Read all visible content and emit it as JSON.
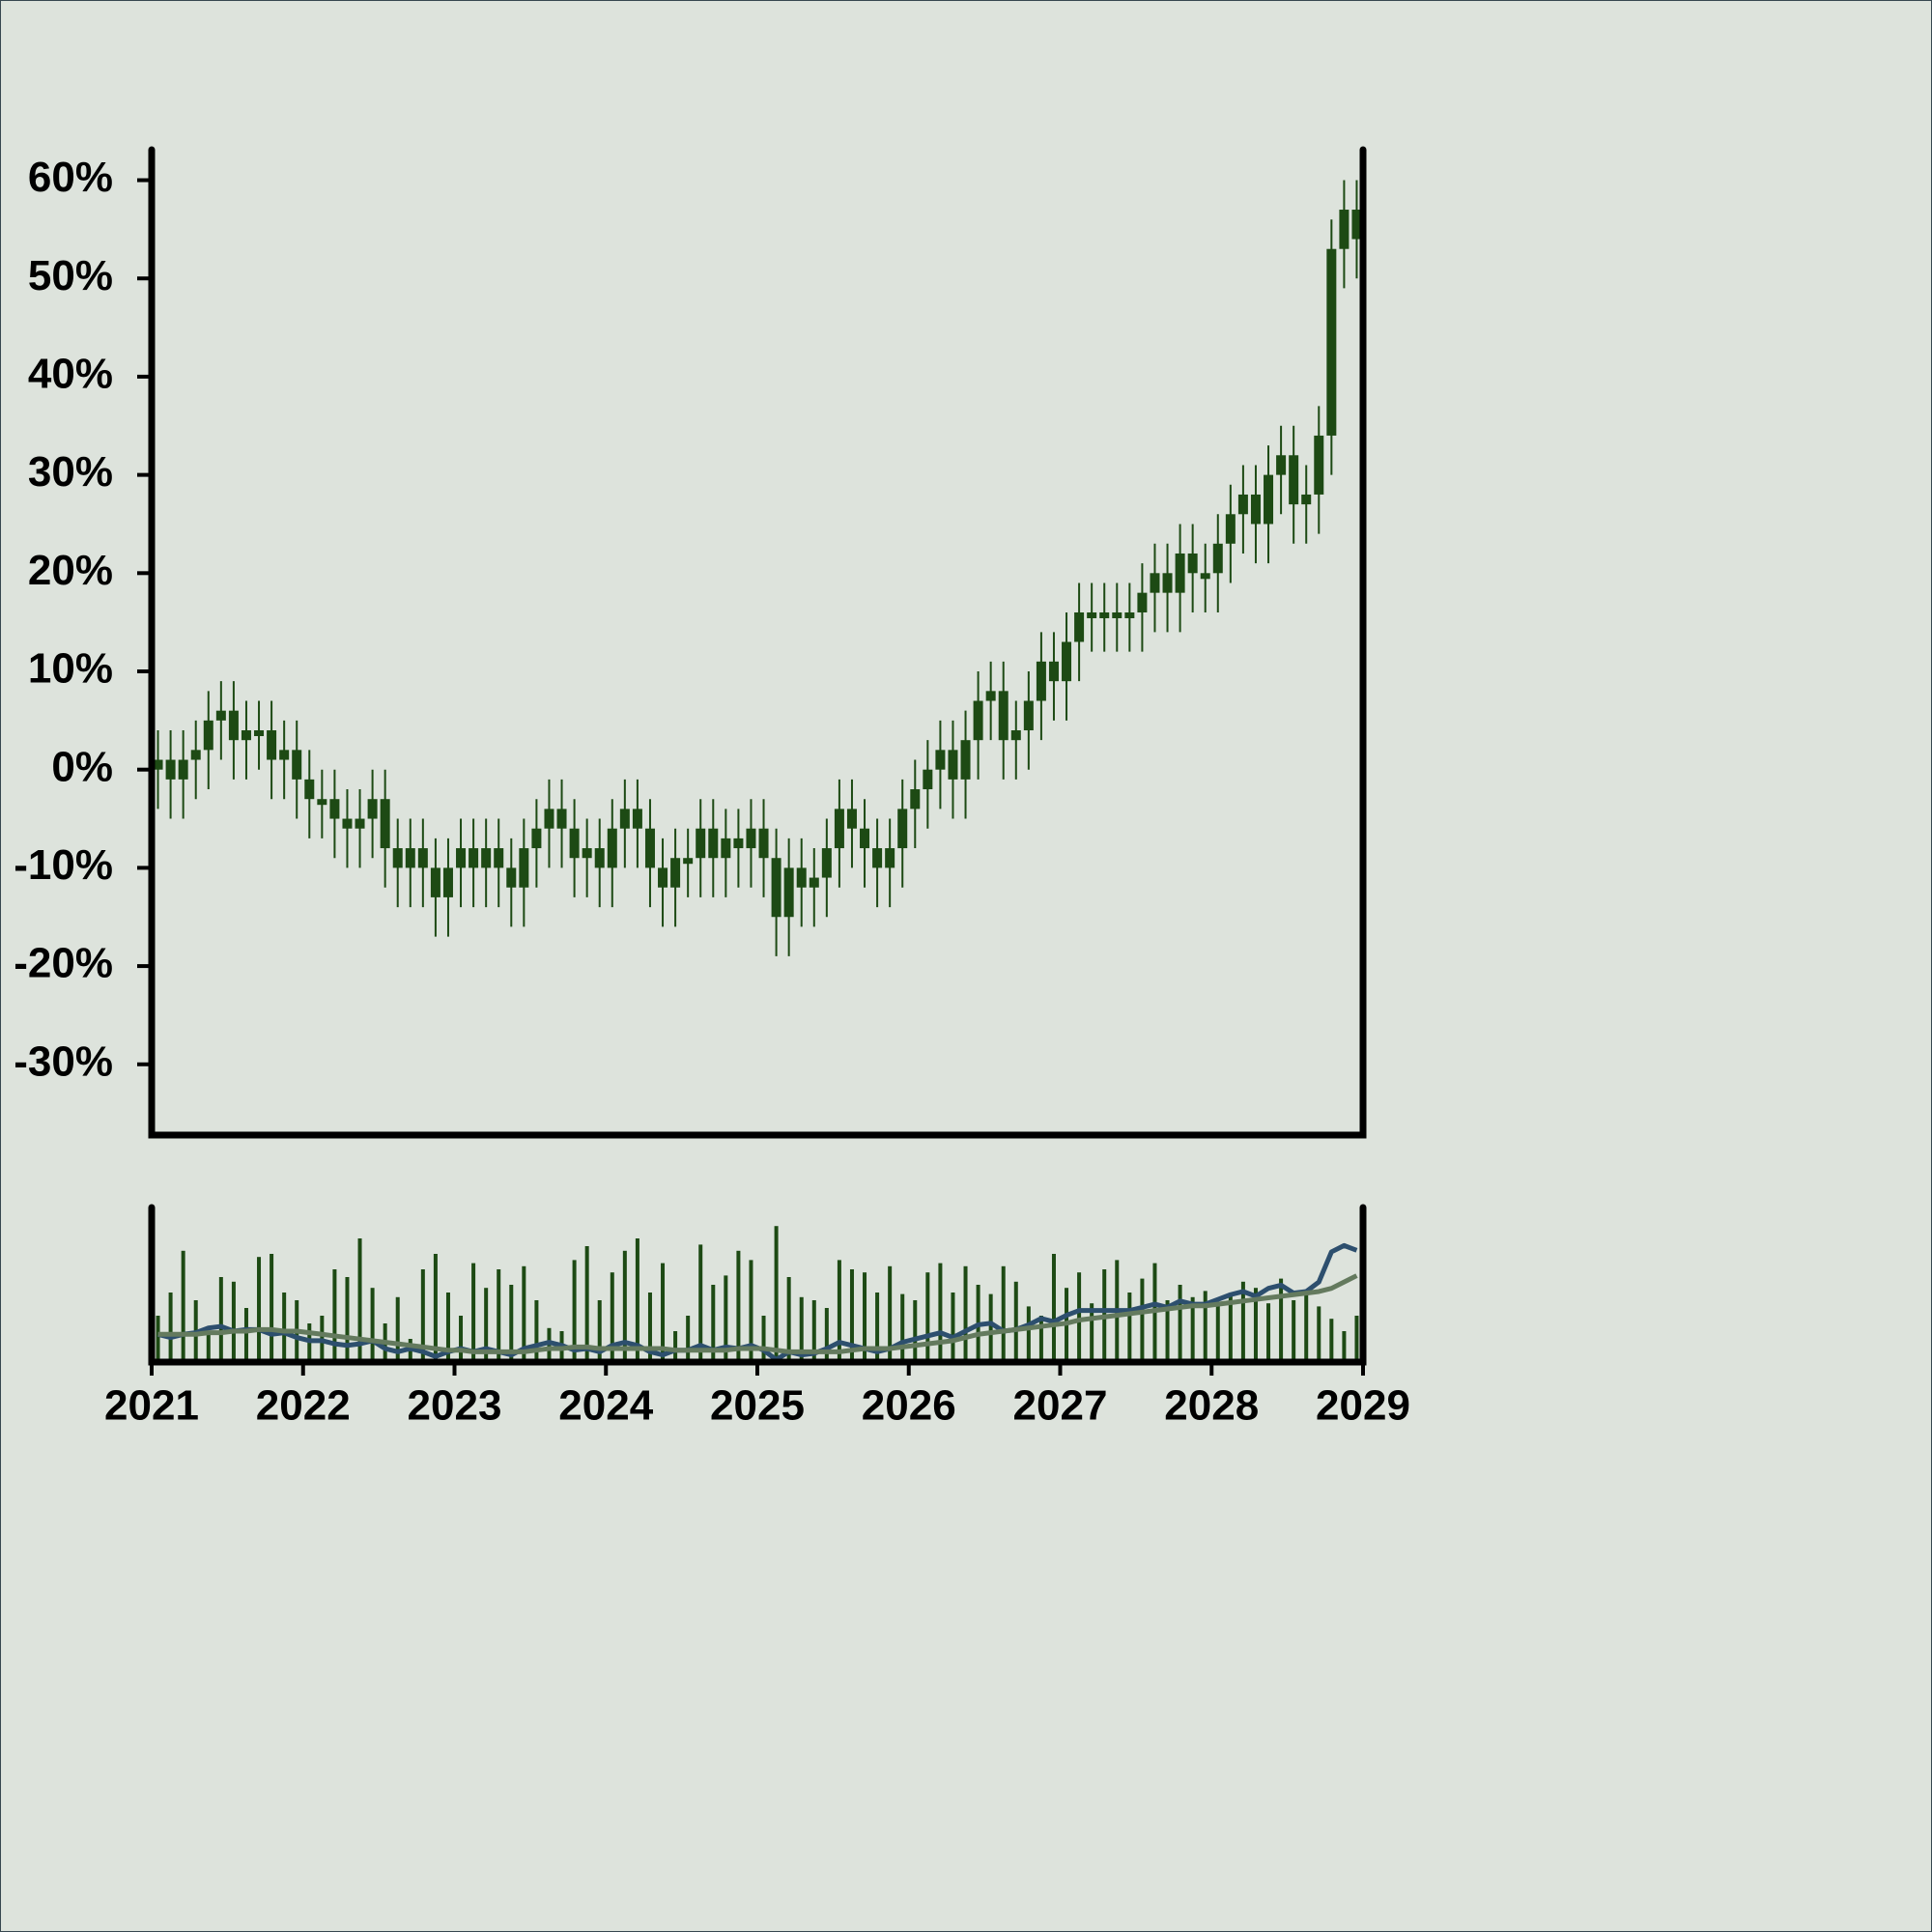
{
  "chart_data": [
    {
      "type": "candlestick",
      "color": "#1d4a14",
      "x": [
        "2021-01",
        "2021-02",
        "2021-03",
        "2021-04",
        "2021-05",
        "2021-06",
        "2021-07",
        "2021-08",
        "2021-09",
        "2021-10",
        "2021-11",
        "2021-12",
        "2022-01",
        "2022-02",
        "2022-03",
        "2022-04",
        "2022-05",
        "2022-06",
        "2022-07",
        "2022-08",
        "2022-09",
        "2022-10",
        "2022-11",
        "2022-12",
        "2023-01",
        "2023-02",
        "2023-03",
        "2023-04",
        "2023-05",
        "2023-06",
        "2023-07",
        "2023-08",
        "2023-09",
        "2023-10",
        "2023-11",
        "2023-12",
        "2024-01",
        "2024-02",
        "2024-03",
        "2024-04",
        "2024-05",
        "2024-06",
        "2024-07",
        "2024-08",
        "2024-09",
        "2024-10",
        "2024-11",
        "2024-12",
        "2025-01",
        "2025-02",
        "2025-03",
        "2025-04",
        "2025-05",
        "2025-06",
        "2025-07",
        "2025-08",
        "2025-09",
        "2025-10",
        "2025-11",
        "2025-12",
        "2026-01",
        "2026-02",
        "2026-03",
        "2026-04",
        "2026-05",
        "2026-06",
        "2026-07",
        "2026-08",
        "2026-09",
        "2026-10",
        "2026-11",
        "2026-12",
        "2027-01",
        "2027-02",
        "2027-03",
        "2027-04",
        "2027-05",
        "2027-06",
        "2027-07",
        "2027-08",
        "2027-09",
        "2027-10",
        "2027-11",
        "2027-12",
        "2028-01",
        "2028-02",
        "2028-03",
        "2028-04",
        "2028-05",
        "2028-06",
        "2028-07",
        "2028-08",
        "2028-09",
        "2028-10",
        "2028-11",
        "2028-12"
      ],
      "open": [
        0,
        1,
        -1,
        1,
        2,
        5,
        6,
        3,
        4,
        4,
        1,
        2,
        -1,
        -3,
        -3,
        -5,
        -6,
        -5,
        -3,
        -8,
        -10,
        -8,
        -10,
        -13,
        -10,
        -8,
        -10,
        -8,
        -10,
        -12,
        -8,
        -6,
        -4,
        -6,
        -9,
        -8,
        -10,
        -6,
        -4,
        -6,
        -10,
        -12,
        -9,
        -9,
        -6,
        -9,
        -7,
        -8,
        -6,
        -9,
        -15,
        -10,
        -12,
        -11,
        -8,
        -4,
        -6,
        -8,
        -10,
        -8,
        -4,
        -2,
        0,
        2,
        -1,
        3,
        7,
        8,
        3,
        4,
        7,
        11,
        9,
        13,
        16,
        16,
        16,
        16,
        16,
        18,
        20,
        18,
        22,
        20,
        20,
        23,
        26,
        28,
        25,
        30,
        32,
        27,
        28,
        34,
        53,
        57
      ],
      "high": [
        4,
        4,
        4,
        5,
        8,
        9,
        9,
        7,
        7,
        7,
        5,
        5,
        2,
        0,
        0,
        -2,
        -2,
        0,
        0,
        -5,
        -5,
        -5,
        -7,
        -7,
        -5,
        -5,
        -5,
        -5,
        -7,
        -5,
        -3,
        -1,
        -1,
        -3,
        -5,
        -5,
        -3,
        -1,
        -1,
        -3,
        -7,
        -6,
        -6,
        -3,
        -3,
        -4,
        -4,
        -3,
        -3,
        -6,
        -7,
        -7,
        -8,
        -5,
        -1,
        -1,
        -3,
        -5,
        -5,
        -1,
        1,
        3,
        5,
        5,
        6,
        10,
        11,
        11,
        7,
        10,
        14,
        14,
        16,
        19,
        19,
        19,
        19,
        19,
        21,
        23,
        23,
        25,
        25,
        23,
        26,
        29,
        31,
        31,
        33,
        35,
        35,
        31,
        37,
        56,
        60,
        60
      ],
      "low": [
        -4,
        -5,
        -5,
        -3,
        -2,
        1,
        -1,
        -1,
        0,
        -3,
        -3,
        -5,
        -7,
        -7,
        -9,
        -10,
        -10,
        -9,
        -12,
        -14,
        -14,
        -14,
        -17,
        -17,
        -14,
        -14,
        -14,
        -14,
        -16,
        -16,
        -12,
        -10,
        -10,
        -13,
        -13,
        -14,
        -14,
        -10,
        -10,
        -14,
        -16,
        -16,
        -13,
        -13,
        -13,
        -13,
        -12,
        -12,
        -13,
        -19,
        -19,
        -16,
        -16,
        -15,
        -12,
        -10,
        -12,
        -14,
        -14,
        -12,
        -8,
        -6,
        -4,
        -5,
        -5,
        -1,
        3,
        -1,
        -1,
        0,
        3,
        5,
        5,
        9,
        12,
        12,
        12,
        12,
        12,
        14,
        14,
        14,
        16,
        16,
        16,
        19,
        22,
        21,
        21,
        26,
        23,
        23,
        24,
        30,
        49,
        50
      ],
      "close": [
        1,
        -1,
        1,
        2,
        5,
        6,
        3,
        4,
        4,
        1,
        2,
        -1,
        -3,
        -3,
        -5,
        -6,
        -5,
        -3,
        -8,
        -10,
        -8,
        -10,
        -13,
        -10,
        -8,
        -10,
        -8,
        -10,
        -12,
        -8,
        -6,
        -4,
        -6,
        -9,
        -8,
        -10,
        -6,
        -4,
        -6,
        -10,
        -12,
        -9,
        -9,
        -6,
        -9,
        -7,
        -8,
        -6,
        -9,
        -15,
        -10,
        -12,
        -11,
        -8,
        -4,
        -6,
        -8,
        -10,
        -8,
        -4,
        -2,
        0,
        2,
        -1,
        3,
        7,
        8,
        3,
        4,
        7,
        11,
        9,
        13,
        16,
        16,
        16,
        16,
        16,
        18,
        20,
        18,
        22,
        20,
        20,
        23,
        26,
        28,
        25,
        30,
        32,
        27,
        28,
        34,
        53,
        57,
        54
      ],
      "xlim": [
        2021,
        2029
      ],
      "ylim": [
        -37.2,
        63.1
      ],
      "yticks": [
        {
          "value": -30,
          "label": "-30%"
        },
        {
          "value": -20,
          "label": "-20%"
        },
        {
          "value": -10,
          "label": "-10%"
        },
        {
          "value": 0,
          "label": "0%"
        },
        {
          "value": 10,
          "label": "10%"
        },
        {
          "value": 20,
          "label": "20%"
        },
        {
          "value": 30,
          "label": "30%"
        },
        {
          "value": 40,
          "label": "40%"
        },
        {
          "value": 50,
          "label": "50%"
        },
        {
          "value": 60,
          "label": "60%"
        }
      ]
    },
    {
      "type": "bar",
      "color": "#1d4a14",
      "x": [
        "2021-01",
        "2021-02",
        "2021-03",
        "2021-04",
        "2021-05",
        "2021-06",
        "2021-07",
        "2021-08",
        "2021-09",
        "2021-10",
        "2021-11",
        "2021-12",
        "2022-01",
        "2022-02",
        "2022-03",
        "2022-04",
        "2022-05",
        "2022-06",
        "2022-07",
        "2022-08",
        "2022-09",
        "2022-10",
        "2022-11",
        "2022-12",
        "2023-01",
        "2023-02",
        "2023-03",
        "2023-04",
        "2023-05",
        "2023-06",
        "2023-07",
        "2023-08",
        "2023-09",
        "2023-10",
        "2023-11",
        "2023-12",
        "2024-01",
        "2024-02",
        "2024-03",
        "2024-04",
        "2024-05",
        "2024-06",
        "2024-07",
        "2024-08",
        "2024-09",
        "2024-10",
        "2024-11",
        "2024-12",
        "2025-01",
        "2025-02",
        "2025-03",
        "2025-04",
        "2025-05",
        "2025-06",
        "2025-07",
        "2025-08",
        "2025-09",
        "2025-10",
        "2025-11",
        "2025-12",
        "2026-01",
        "2026-02",
        "2026-03",
        "2026-04",
        "2026-05",
        "2026-06",
        "2026-07",
        "2026-08",
        "2026-09",
        "2026-10",
        "2026-11",
        "2026-12",
        "2027-01",
        "2027-02",
        "2027-03",
        "2027-04",
        "2027-05",
        "2027-06",
        "2027-07",
        "2027-08",
        "2027-09",
        "2027-10",
        "2027-11",
        "2027-12",
        "2028-01",
        "2028-02",
        "2028-03",
        "2028-04",
        "2028-05",
        "2028-06",
        "2028-07",
        "2028-08",
        "2028-09",
        "2028-10",
        "2028-11",
        "2028-12"
      ],
      "values": [
        30,
        45,
        72,
        40,
        20,
        55,
        52,
        35,
        68,
        70,
        45,
        40,
        25,
        30,
        60,
        55,
        80,
        48,
        25,
        42,
        15,
        60,
        70,
        45,
        30,
        64,
        48,
        60,
        50,
        62,
        40,
        22,
        20,
        66,
        75,
        40,
        58,
        72,
        80,
        45,
        64,
        20,
        30,
        76,
        50,
        56,
        72,
        66,
        30,
        88,
        55,
        42,
        40,
        35,
        66,
        60,
        58,
        45,
        62,
        44,
        40,
        58,
        64,
        45,
        62,
        50,
        44,
        62,
        52,
        36,
        30,
        70,
        48,
        58,
        38,
        60,
        66,
        45,
        54,
        64,
        40,
        50,
        42,
        46,
        38,
        44,
        52,
        48,
        38,
        54,
        40,
        46,
        36,
        28,
        20,
        30
      ],
      "xlim": [
        2021,
        2029
      ],
      "xticks": [
        2021,
        2022,
        2023,
        2024,
        2025,
        2026,
        2027,
        2028,
        2029
      ],
      "ylim": [
        0,
        100
      ],
      "y2lim": [
        -16.5,
        81
      ],
      "series": [
        {
          "color": "#2d4f6e",
          "axis": "y2",
          "values": [
            1,
            -1,
            1,
            2,
            5,
            6,
            3,
            4,
            4,
            1,
            2,
            -1,
            -3,
            -3,
            -5,
            -6,
            -5,
            -3,
            -8,
            -10,
            -8,
            -10,
            -13,
            -10,
            -8,
            -10,
            -8,
            -10,
            -12,
            -8,
            -6,
            -4,
            -6,
            -9,
            -8,
            -10,
            -6,
            -4,
            -6,
            -10,
            -12,
            -9,
            -9,
            -6,
            -9,
            -7,
            -8,
            -6,
            -9,
            -15,
            -10,
            -12,
            -11,
            -8,
            -4,
            -6,
            -8,
            -10,
            -8,
            -4,
            -2,
            0,
            2,
            -1,
            3,
            7,
            8,
            3,
            4,
            7,
            11,
            9,
            13,
            16,
            16,
            16,
            16,
            16,
            18,
            20,
            18,
            22,
            20,
            20,
            23,
            26,
            28,
            25,
            30,
            32,
            27,
            28,
            34,
            53,
            57,
            54
          ]
        },
        {
          "color": "#647a5e",
          "axis": "y2",
          "values": [
            1,
            1,
            1,
            1,
            2,
            2,
            3,
            3,
            4,
            4,
            3,
            3,
            2,
            1,
            0,
            -1,
            -2,
            -3,
            -4,
            -5,
            -6,
            -7,
            -8,
            -9,
            -9,
            -10,
            -10,
            -10,
            -10,
            -10,
            -9,
            -8,
            -8,
            -7,
            -7,
            -8,
            -8,
            -8,
            -8,
            -8,
            -8,
            -9,
            -9,
            -9,
            -9,
            -9,
            -8,
            -8,
            -8,
            -9,
            -10,
            -10,
            -10,
            -10,
            -10,
            -9,
            -8,
            -8,
            -8,
            -7,
            -6,
            -5,
            -4,
            -3,
            -1,
            1,
            2,
            3,
            4,
            5,
            6,
            7,
            8,
            10,
            11,
            12,
            13,
            14,
            15,
            16,
            17,
            18,
            19,
            19,
            20,
            21,
            22,
            23,
            24,
            25,
            26,
            27,
            28,
            30,
            34,
            38
          ]
        }
      ]
    }
  ]
}
